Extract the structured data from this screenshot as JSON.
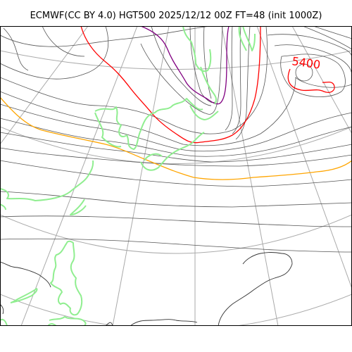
{
  "title": "ECMWF(CC BY 4.0) HGT500 2025/12/12 00Z FT=48 (init 1000Z)",
  "map": {
    "field": "HGT500",
    "contour_labels": [
      "5400"
    ],
    "highlighted_contours": [
      {
        "value": "5400",
        "color": "#ff0000"
      },
      {
        "value": "5700",
        "color": "#ffa500"
      },
      {
        "value": "5100",
        "color": "#800080"
      }
    ],
    "colors": {
      "contour": "#555555",
      "graticule": "#aaaaaa",
      "coastline": "#90ee90",
      "land_edge": "#333333"
    }
  }
}
